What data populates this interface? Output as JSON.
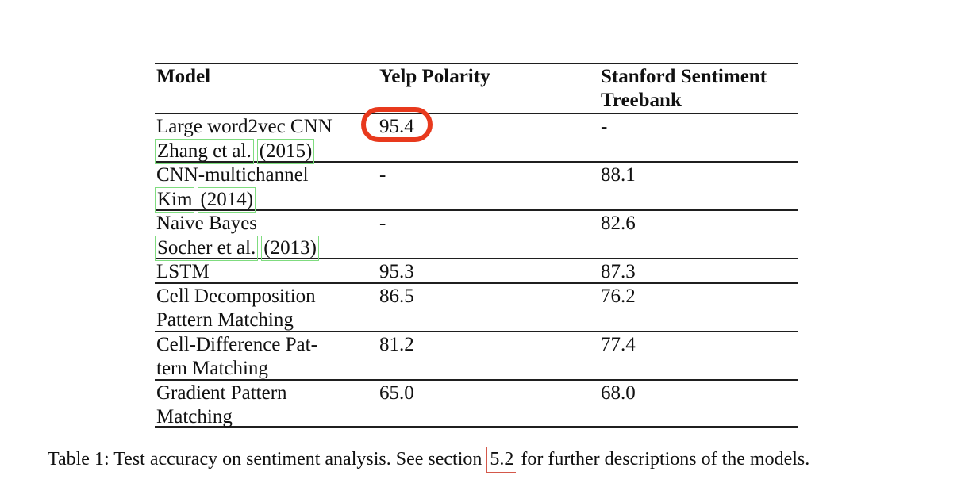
{
  "colors": {
    "rule": "#1f1f1f",
    "text": "#111111",
    "highlight-circle": "#e8391d",
    "citation-box": "#7fdc7f",
    "section-link": "#d4584a"
  },
  "table": {
    "header": {
      "model": "Model",
      "yelp": "Yelp Polarity",
      "sst": "Stanford Sentiment Treebank"
    },
    "rows": [
      {
        "name": "Large word2vec CNN",
        "cite_a": "Zhang et al.",
        "cite_b": "(2015)",
        "yelp": "95.4",
        "sst": "-"
      },
      {
        "name": "CNN-multichannel",
        "cite_a": "Kim",
        "cite_b": "(2014)",
        "yelp": "-",
        "sst": "88.1"
      },
      {
        "name": "Naive Bayes",
        "cite_a": "Socher et al.",
        "cite_b": "(2013)",
        "yelp": "-",
        "sst": "82.6"
      },
      {
        "name": "LSTM",
        "yelp": "95.3",
        "sst": "87.3"
      },
      {
        "name": "Cell Decomposition",
        "name2": "Pattern Matching",
        "yelp": "86.5",
        "sst": "76.2"
      },
      {
        "name": "Cell-Difference Pat-",
        "name2": "tern Matching",
        "yelp": "81.2",
        "sst": "77.4"
      },
      {
        "name": "Gradient Pattern",
        "name2": "Matching",
        "yelp": "65.0",
        "sst": "68.0"
      }
    ],
    "highlighted_value": "95.4"
  },
  "caption": {
    "prefix": "Table 1: Test accuracy on sentiment analysis. See section ",
    "link": "5.2",
    "suffix": " for further descriptions of the models."
  }
}
